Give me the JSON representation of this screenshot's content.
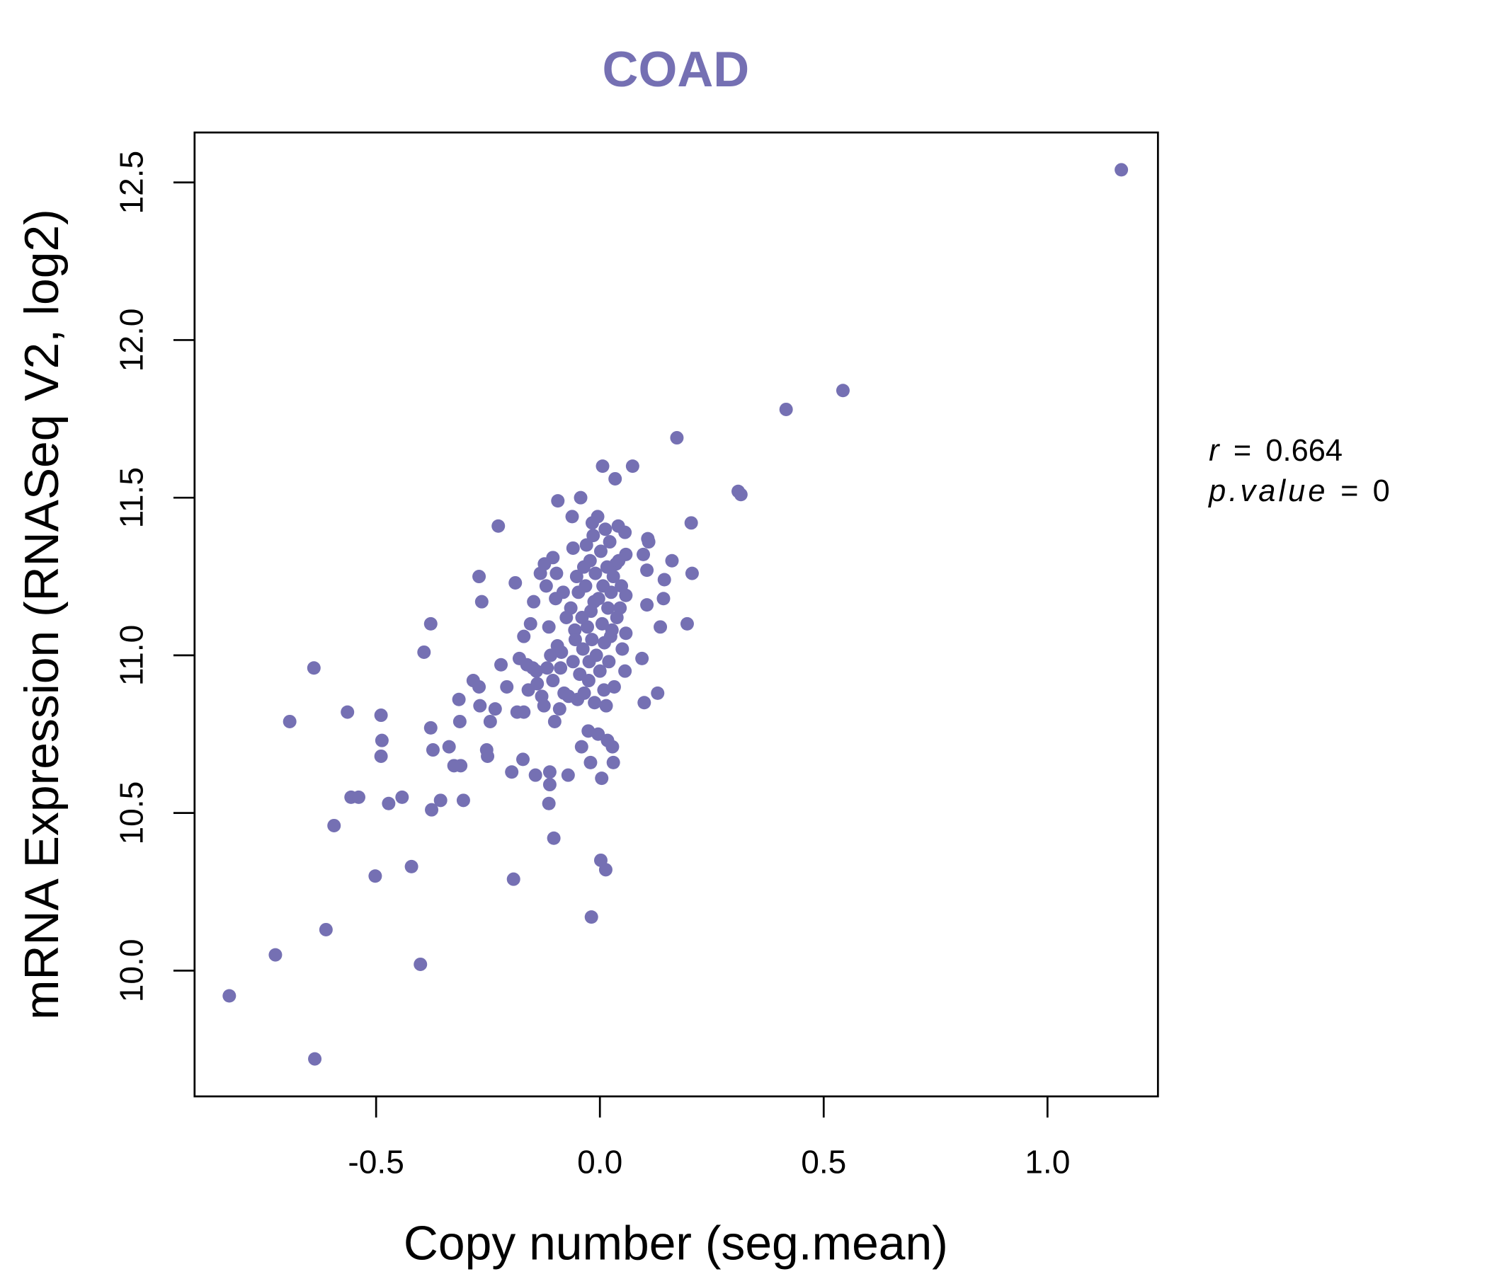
{
  "chart_data": {
    "type": "scatter",
    "title": "COAD",
    "xlabel": "Copy number (seg.mean)",
    "ylabel": "mRNA Expression (RNASeq V2, log2)",
    "xlim": [
      -0.91,
      1.25
    ],
    "ylim": [
      9.6,
      12.65
    ],
    "x_ticks": [
      -0.5,
      0.0,
      0.5,
      1.0
    ],
    "x_tick_labels": [
      "-0.5",
      "0.0",
      "0.5",
      "1.0"
    ],
    "y_ticks": [
      10.0,
      10.5,
      11.0,
      11.5,
      12.0,
      12.5
    ],
    "y_tick_labels": [
      "10.0",
      "10.5",
      "11.0",
      "11.5",
      "12.0",
      "12.5"
    ],
    "grid": false,
    "point_color": "#7570B3",
    "title_color": "#7570B3",
    "annotations": {
      "r_label": "r",
      "r_value": "0.664",
      "p_label": "p.value",
      "p_value": "0",
      "equals": "="
    },
    "points": [
      [
        1.165,
        12.54
      ],
      [
        0.543,
        11.84
      ],
      [
        0.416,
        11.78
      ],
      [
        0.172,
        11.69
      ],
      [
        0.309,
        11.52
      ],
      [
        0.315,
        11.51
      ],
      [
        0.073,
        11.6
      ],
      [
        0.006,
        11.6
      ],
      [
        0.204,
        11.42
      ],
      [
        0.206,
        11.26
      ],
      [
        0.161,
        11.3
      ],
      [
        0.195,
        11.1
      ],
      [
        0.129,
        10.88
      ],
      [
        0.099,
        10.85
      ],
      [
        0.094,
        10.99
      ],
      [
        0.056,
        10.95
      ],
      [
        0.135,
        11.09
      ],
      [
        0.142,
        11.18
      ],
      [
        0.144,
        11.24
      ],
      [
        0.107,
        11.37
      ],
      [
        0.109,
        11.36
      ],
      [
        0.105,
        11.27
      ],
      [
        0.105,
        11.16
      ],
      [
        0.097,
        11.32
      ],
      [
        0.058,
        11.32
      ],
      [
        0.056,
        11.39
      ],
      [
        0.058,
        11.07
      ],
      [
        -0.828,
        9.92
      ],
      [
        -0.637,
        9.72
      ],
      [
        -0.725,
        10.05
      ],
      [
        -0.612,
        10.13
      ],
      [
        -0.401,
        10.02
      ],
      [
        -0.502,
        10.3
      ],
      [
        -0.421,
        10.33
      ],
      [
        -0.594,
        10.46
      ],
      [
        -0.556,
        10.55
      ],
      [
        -0.539,
        10.55
      ],
      [
        -0.472,
        10.53
      ],
      [
        -0.442,
        10.55
      ],
      [
        -0.376,
        10.51
      ],
      [
        -0.356,
        10.54
      ],
      [
        -0.305,
        10.54
      ],
      [
        -0.693,
        10.79
      ],
      [
        -0.639,
        10.96
      ],
      [
        -0.564,
        10.82
      ],
      [
        -0.489,
        10.81
      ],
      [
        -0.487,
        10.73
      ],
      [
        -0.489,
        10.68
      ],
      [
        -0.378,
        10.77
      ],
      [
        -0.373,
        10.7
      ],
      [
        -0.337,
        10.71
      ],
      [
        -0.393,
        11.01
      ],
      [
        -0.378,
        11.1
      ],
      [
        -0.326,
        10.65
      ],
      [
        -0.311,
        10.65
      ],
      [
        -0.313,
        10.79
      ],
      [
        -0.315,
        10.86
      ],
      [
        -0.283,
        10.92
      ],
      [
        -0.27,
        10.9
      ],
      [
        -0.268,
        10.84
      ],
      [
        -0.253,
        10.7
      ],
      [
        -0.251,
        10.68
      ],
      [
        -0.245,
        10.79
      ],
      [
        -0.234,
        10.83
      ],
      [
        -0.27,
        11.25
      ],
      [
        -0.264,
        11.17
      ],
      [
        -0.227,
        11.41
      ],
      [
        -0.221,
        10.97
      ],
      [
        -0.208,
        10.9
      ],
      [
        -0.197,
        10.63
      ],
      [
        -0.193,
        10.29
      ],
      [
        -0.189,
        11.23
      ],
      [
        -0.185,
        10.82
      ],
      [
        -0.18,
        10.99
      ],
      [
        -0.172,
        10.67
      ],
      [
        -0.17,
        10.82
      ],
      [
        -0.17,
        11.06
      ],
      [
        -0.163,
        10.97
      ],
      [
        -0.155,
        11.1
      ],
      [
        -0.148,
        11.17
      ],
      [
        -0.144,
        10.62
      ],
      [
        -0.142,
        10.95
      ],
      [
        -0.133,
        11.26
      ],
      [
        -0.124,
        11.29
      ],
      [
        -0.12,
        11.22
      ],
      [
        -0.114,
        11.09
      ],
      [
        -0.114,
        10.53
      ],
      [
        -0.112,
        10.59
      ],
      [
        -0.112,
        10.63
      ],
      [
        -0.105,
        11.31
      ],
      [
        -0.103,
        10.42
      ],
      [
        -0.101,
        10.79
      ],
      [
        -0.099,
        11.18
      ],
      [
        -0.097,
        11.26
      ],
      [
        -0.094,
        11.49
      ],
      [
        -0.09,
        10.83
      ],
      [
        -0.086,
        11.01
      ],
      [
        -0.082,
        11.2
      ],
      [
        -0.071,
        10.62
      ],
      [
        -0.06,
        11.34
      ],
      [
        -0.062,
        11.44
      ],
      [
        -0.056,
        11.08
      ],
      [
        -0.052,
        11.25
      ],
      [
        -0.043,
        11.5
      ],
      [
        -0.041,
        10.71
      ],
      [
        -0.036,
        11.28
      ],
      [
        -0.026,
        10.76
      ],
      [
        -0.019,
        10.17
      ],
      [
        -0.021,
        10.66
      ],
      [
        -0.024,
        10.98
      ],
      [
        -0.017,
        11.42
      ],
      [
        -0.013,
        11.17
      ],
      [
        -0.004,
        10.75
      ],
      [
        0.002,
        10.35
      ],
      [
        0.004,
        10.61
      ],
      [
        0.009,
        10.89
      ],
      [
        0.013,
        10.32
      ],
      [
        0.017,
        10.73
      ],
      [
        0.024,
        11.06
      ],
      [
        0.028,
        10.71
      ],
      [
        0.03,
        10.66
      ],
      [
        0.034,
        11.56
      ],
      [
        0.036,
        11.29
      ],
      [
        0.041,
        11.41
      ],
      [
        0.045,
        11.15
      ],
      [
        0.058,
        11.19
      ],
      [
        -0.13,
        10.87
      ],
      [
        -0.125,
        10.84
      ],
      [
        -0.118,
        10.96
      ],
      [
        -0.11,
        11.0
      ],
      [
        -0.105,
        10.92
      ],
      [
        -0.095,
        11.03
      ],
      [
        -0.088,
        10.96
      ],
      [
        -0.08,
        10.88
      ],
      [
        -0.075,
        11.12
      ],
      [
        -0.07,
        10.87
      ],
      [
        -0.065,
        11.15
      ],
      [
        -0.06,
        10.98
      ],
      [
        -0.055,
        11.05
      ],
      [
        -0.05,
        10.86
      ],
      [
        -0.048,
        11.2
      ],
      [
        -0.045,
        10.94
      ],
      [
        -0.04,
        11.12
      ],
      [
        -0.038,
        11.02
      ],
      [
        -0.035,
        10.88
      ],
      [
        -0.032,
        11.22
      ],
      [
        -0.03,
        11.35
      ],
      [
        -0.028,
        11.09
      ],
      [
        -0.025,
        10.92
      ],
      [
        -0.022,
        11.3
      ],
      [
        -0.02,
        11.14
      ],
      [
        -0.018,
        11.05
      ],
      [
        -0.015,
        11.38
      ],
      [
        -0.012,
        10.85
      ],
      [
        -0.01,
        11.26
      ],
      [
        -0.008,
        11.0
      ],
      [
        -0.005,
        11.44
      ],
      [
        -0.003,
        11.18
      ],
      [
        0.0,
        10.95
      ],
      [
        0.002,
        11.33
      ],
      [
        0.005,
        11.1
      ],
      [
        0.007,
        11.22
      ],
      [
        0.01,
        11.04
      ],
      [
        0.012,
        11.4
      ],
      [
        0.014,
        10.84
      ],
      [
        0.016,
        11.28
      ],
      [
        0.018,
        11.15
      ],
      [
        0.02,
        10.98
      ],
      [
        0.022,
        11.36
      ],
      [
        0.025,
        11.2
      ],
      [
        0.027,
        11.08
      ],
      [
        0.03,
        11.25
      ],
      [
        0.032,
        10.9
      ],
      [
        0.038,
        11.12
      ],
      [
        0.042,
        11.3
      ],
      [
        0.048,
        11.22
      ],
      [
        0.05,
        11.02
      ],
      [
        -0.14,
        10.91
      ],
      [
        -0.15,
        10.96
      ],
      [
        -0.16,
        10.89
      ]
    ]
  }
}
